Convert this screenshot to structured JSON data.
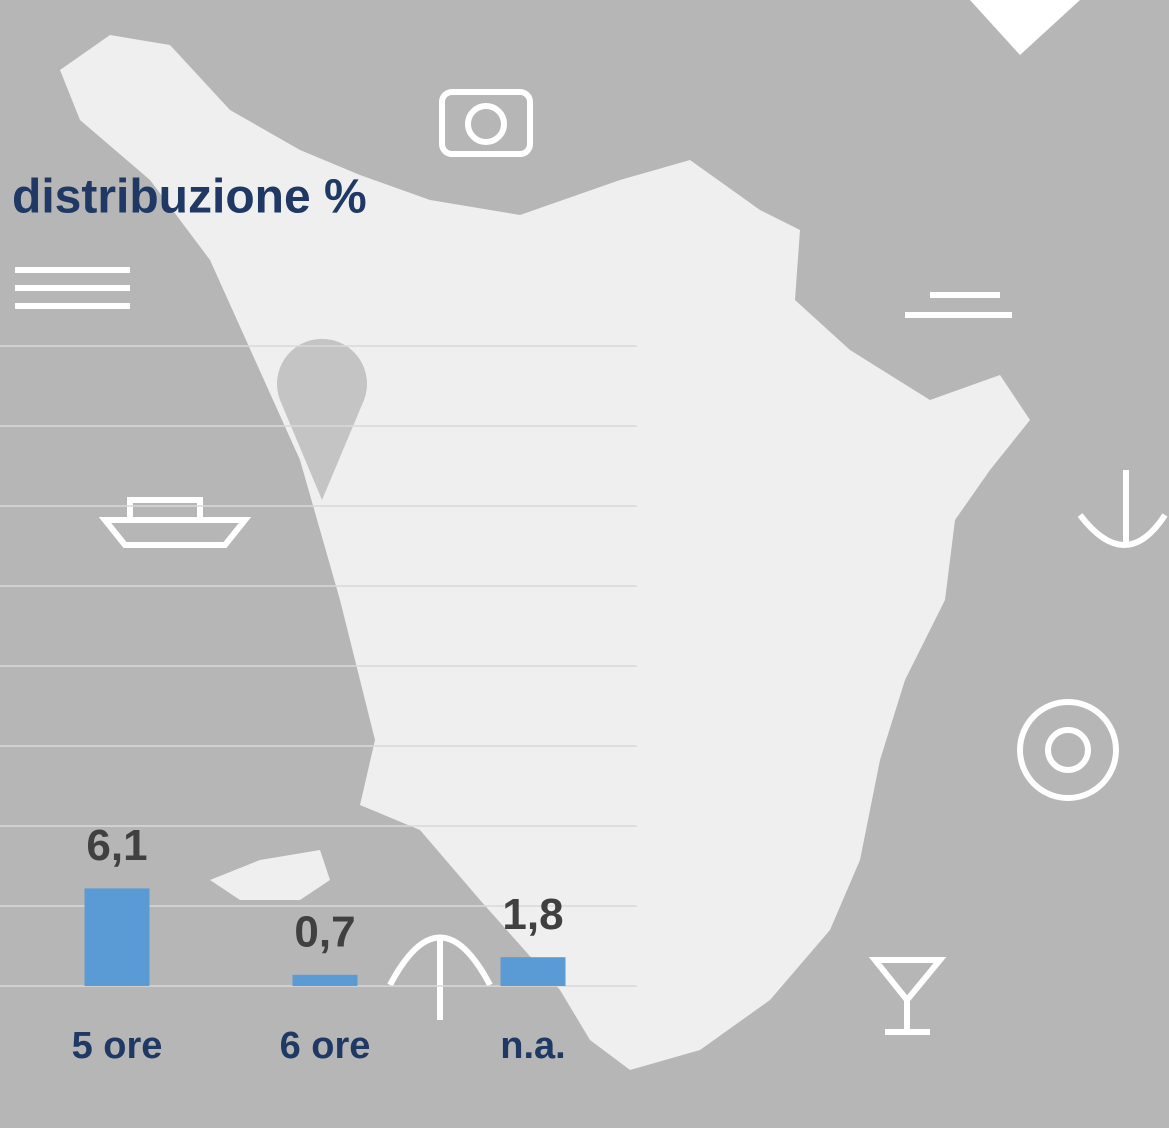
{
  "chart_data": {
    "type": "bar",
    "title": "distribuzione %",
    "categories": [
      "5 ore",
      "6 ore",
      "n.a."
    ],
    "values": [
      6.1,
      0.7,
      1.8
    ],
    "value_labels": [
      "6,1",
      "0,7",
      "1,8"
    ],
    "color": "#5b9bd5",
    "ylim": [
      0,
      40
    ],
    "yticks": [
      0,
      5,
      10,
      15,
      20,
      25,
      30,
      35,
      40
    ],
    "grid": true
  }
}
